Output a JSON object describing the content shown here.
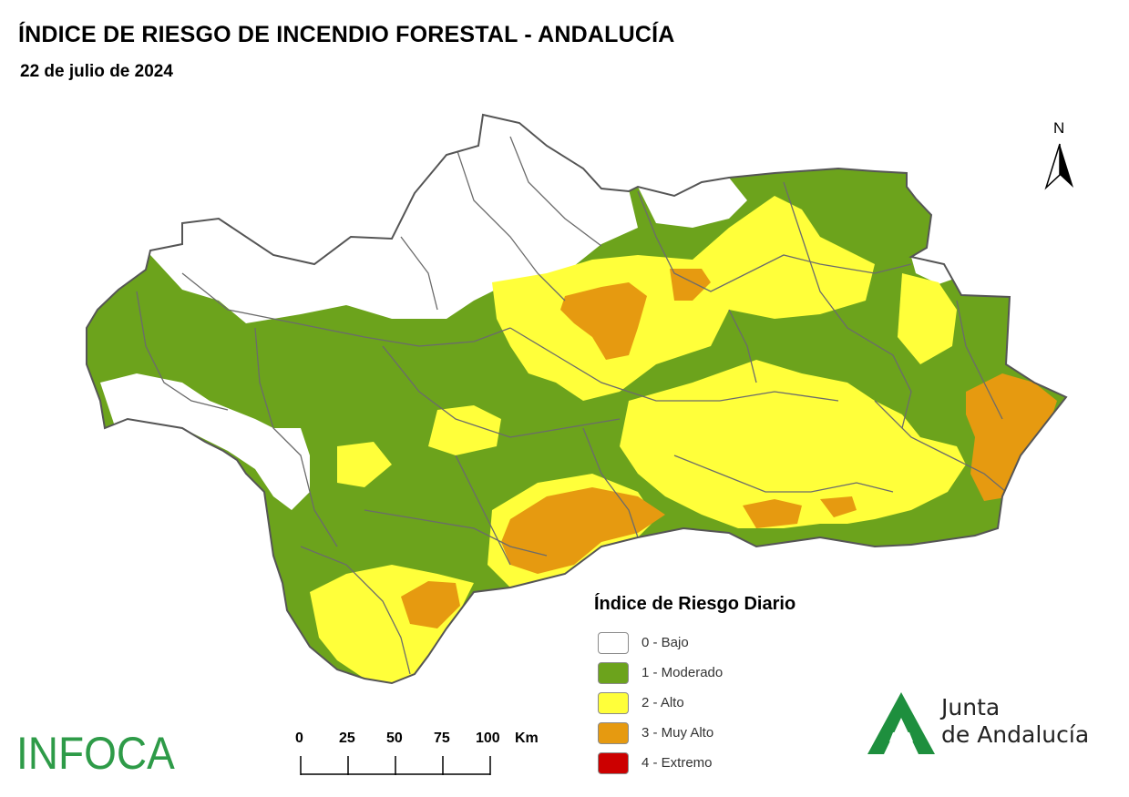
{
  "header": {
    "title": "ÍNDICE DE RIESGO DE INCENDIO FORESTAL - ANDALUCÍA",
    "date": "22 de julio de 2024"
  },
  "compass": {
    "label": "N",
    "icon": "north-arrow-icon"
  },
  "legend": {
    "title": "Índice de Riesgo Diario",
    "items": [
      {
        "label": "0 - Bajo",
        "color": "#ffffff"
      },
      {
        "label": "1 - Moderado",
        "color": "#6ca31c"
      },
      {
        "label": "2 - Alto",
        "color": "#ffff3a"
      },
      {
        "label": "3 - Muy Alto",
        "color": "#e69a10"
      },
      {
        "label": "4 - Extremo",
        "color": "#cc0000"
      }
    ]
  },
  "scalebar": {
    "ticks": [
      "0",
      "25",
      "50",
      "75",
      "100"
    ],
    "unit": "Km"
  },
  "logos": {
    "infoca": "INFOCA",
    "junta_line1": "Junta",
    "junta_line2": "de Andalucía"
  },
  "map": {
    "region": "Andalucía",
    "colors": {
      "border": "#5a5a5a",
      "bajo": "#ffffff",
      "moderado": "#6ca31c",
      "alto": "#ffff3a",
      "muy_alto": "#e69a10"
    }
  }
}
